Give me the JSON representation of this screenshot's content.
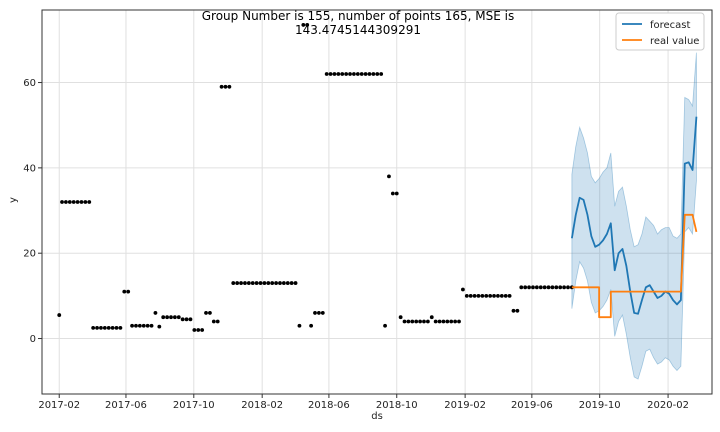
{
  "chart_data": {
    "type": "line",
    "title_line1": "Group Number is 155, number of points 165, MSE is",
    "title_line2": "143.4745144309291",
    "xlabel": "ds",
    "ylabel": "y",
    "xlim": [
      "2017-01-01",
      "2020-04-20"
    ],
    "ylim": [
      -13,
      77
    ],
    "grid": true,
    "legend_position": "top-right",
    "x_ticks": [
      {
        "date": "2017-02-01",
        "label": "2017-02"
      },
      {
        "date": "2017-06-01",
        "label": "2017-06"
      },
      {
        "date": "2017-10-01",
        "label": "2017-10"
      },
      {
        "date": "2018-02-01",
        "label": "2018-02"
      },
      {
        "date": "2018-06-01",
        "label": "2018-06"
      },
      {
        "date": "2018-10-01",
        "label": "2018-10"
      },
      {
        "date": "2019-02-01",
        "label": "2019-02"
      },
      {
        "date": "2019-06-01",
        "label": "2019-06"
      },
      {
        "date": "2019-10-01",
        "label": "2019-10"
      },
      {
        "date": "2020-02-01",
        "label": "2020-02"
      }
    ],
    "y_ticks": [
      0,
      20,
      40,
      60
    ],
    "colors": {
      "history": "#000000",
      "forecast": "#1f77b4",
      "real": "#ff7f0e",
      "band": "#1f77b4"
    },
    "series": [
      {
        "name": "",
        "kind": "scatter",
        "points": [
          [
            "2017-02-01",
            5.5
          ],
          [
            "2017-02-06",
            32
          ],
          [
            "2017-02-13",
            32
          ],
          [
            "2017-02-20",
            32
          ],
          [
            "2017-02-27",
            32
          ],
          [
            "2017-03-06",
            32
          ],
          [
            "2017-03-13",
            32
          ],
          [
            "2017-03-20",
            32
          ],
          [
            "2017-03-27",
            32
          ],
          [
            "2017-04-03",
            2.5
          ],
          [
            "2017-04-10",
            2.5
          ],
          [
            "2017-04-17",
            2.5
          ],
          [
            "2017-04-24",
            2.5
          ],
          [
            "2017-05-01",
            2.5
          ],
          [
            "2017-05-08",
            2.5
          ],
          [
            "2017-05-15",
            2.5
          ],
          [
            "2017-05-22",
            2.5
          ],
          [
            "2017-05-29",
            11
          ],
          [
            "2017-06-05",
            11
          ],
          [
            "2017-06-12",
            3
          ],
          [
            "2017-06-19",
            3
          ],
          [
            "2017-06-26",
            3
          ],
          [
            "2017-07-03",
            3
          ],
          [
            "2017-07-10",
            3
          ],
          [
            "2017-07-17",
            3
          ],
          [
            "2017-07-24",
            6
          ],
          [
            "2017-07-31",
            2.8
          ],
          [
            "2017-08-07",
            5
          ],
          [
            "2017-08-14",
            5
          ],
          [
            "2017-08-21",
            5
          ],
          [
            "2017-08-28",
            5
          ],
          [
            "2017-09-04",
            5
          ],
          [
            "2017-09-11",
            4.5
          ],
          [
            "2017-09-18",
            4.5
          ],
          [
            "2017-09-25",
            4.5
          ],
          [
            "2017-10-02",
            2
          ],
          [
            "2017-10-09",
            2
          ],
          [
            "2017-10-16",
            2
          ],
          [
            "2017-10-23",
            6
          ],
          [
            "2017-10-30",
            6
          ],
          [
            "2017-11-06",
            4
          ],
          [
            "2017-11-13",
            4
          ],
          [
            "2017-11-20",
            59
          ],
          [
            "2017-11-27",
            59
          ],
          [
            "2017-12-04",
            59
          ],
          [
            "2017-12-11",
            13
          ],
          [
            "2017-12-18",
            13
          ],
          [
            "2017-12-25",
            13
          ],
          [
            "2018-01-01",
            13
          ],
          [
            "2018-01-08",
            13
          ],
          [
            "2018-01-15",
            13
          ],
          [
            "2018-01-22",
            13
          ],
          [
            "2018-01-29",
            13
          ],
          [
            "2018-02-05",
            13
          ],
          [
            "2018-02-12",
            13
          ],
          [
            "2018-02-19",
            13
          ],
          [
            "2018-02-26",
            13
          ],
          [
            "2018-03-05",
            13
          ],
          [
            "2018-03-12",
            13
          ],
          [
            "2018-03-19",
            13
          ],
          [
            "2018-03-26",
            13
          ],
          [
            "2018-04-02",
            13
          ],
          [
            "2018-04-09",
            3
          ],
          [
            "2018-04-16",
            73.5
          ],
          [
            "2018-04-23",
            73.5
          ],
          [
            "2018-04-30",
            3
          ],
          [
            "2018-05-07",
            6
          ],
          [
            "2018-05-14",
            6
          ],
          [
            "2018-05-21",
            6
          ],
          [
            "2018-05-28",
            62
          ],
          [
            "2018-06-04",
            62
          ],
          [
            "2018-06-11",
            62
          ],
          [
            "2018-06-18",
            62
          ],
          [
            "2018-06-25",
            62
          ],
          [
            "2018-07-02",
            62
          ],
          [
            "2018-07-09",
            62
          ],
          [
            "2018-07-16",
            62
          ],
          [
            "2018-07-23",
            62
          ],
          [
            "2018-07-30",
            62
          ],
          [
            "2018-08-06",
            62
          ],
          [
            "2018-08-13",
            62
          ],
          [
            "2018-08-20",
            62
          ],
          [
            "2018-08-27",
            62
          ],
          [
            "2018-09-03",
            62
          ],
          [
            "2018-09-10",
            3
          ],
          [
            "2018-09-17",
            38
          ],
          [
            "2018-09-24",
            34
          ],
          [
            "2018-10-01",
            34
          ],
          [
            "2018-10-08",
            5
          ],
          [
            "2018-10-15",
            4
          ],
          [
            "2018-10-22",
            4
          ],
          [
            "2018-10-29",
            4
          ],
          [
            "2018-11-05",
            4
          ],
          [
            "2018-11-12",
            4
          ],
          [
            "2018-11-19",
            4
          ],
          [
            "2018-11-26",
            4
          ],
          [
            "2018-12-03",
            5
          ],
          [
            "2018-12-10",
            4
          ],
          [
            "2018-12-17",
            4
          ],
          [
            "2018-12-24",
            4
          ],
          [
            "2018-12-31",
            4
          ],
          [
            "2019-01-07",
            4
          ],
          [
            "2019-01-14",
            4
          ],
          [
            "2019-01-21",
            4
          ],
          [
            "2019-01-28",
            11.5
          ],
          [
            "2019-02-04",
            10
          ],
          [
            "2019-02-11",
            10
          ],
          [
            "2019-02-18",
            10
          ],
          [
            "2019-02-25",
            10
          ],
          [
            "2019-03-04",
            10
          ],
          [
            "2019-03-11",
            10
          ],
          [
            "2019-03-18",
            10
          ],
          [
            "2019-03-25",
            10
          ],
          [
            "2019-04-01",
            10
          ],
          [
            "2019-04-08",
            10
          ],
          [
            "2019-04-15",
            10
          ],
          [
            "2019-04-22",
            10
          ],
          [
            "2019-04-29",
            6.5
          ],
          [
            "2019-05-06",
            6.5
          ],
          [
            "2019-05-13",
            12
          ],
          [
            "2019-05-20",
            12
          ],
          [
            "2019-05-27",
            12
          ],
          [
            "2019-06-03",
            12
          ],
          [
            "2019-06-10",
            12
          ],
          [
            "2019-06-17",
            12
          ],
          [
            "2019-06-24",
            12
          ],
          [
            "2019-07-01",
            12
          ],
          [
            "2019-07-08",
            12
          ],
          [
            "2019-07-15",
            12
          ],
          [
            "2019-07-22",
            12
          ],
          [
            "2019-07-29",
            12
          ],
          [
            "2019-08-05",
            12
          ],
          [
            "2019-08-12",
            12
          ]
        ]
      },
      {
        "name": "forecast",
        "kind": "line",
        "points": [
          [
            "2019-08-12",
            23.5
          ],
          [
            "2019-08-19",
            29
          ],
          [
            "2019-08-26",
            33
          ],
          [
            "2019-09-02",
            32.5
          ],
          [
            "2019-09-09",
            29
          ],
          [
            "2019-09-16",
            24
          ],
          [
            "2019-09-23",
            21.5
          ],
          [
            "2019-09-30",
            22
          ],
          [
            "2019-10-07",
            23
          ],
          [
            "2019-10-14",
            24.5
          ],
          [
            "2019-10-21",
            27
          ],
          [
            "2019-10-28",
            16
          ],
          [
            "2019-11-04",
            20
          ],
          [
            "2019-11-11",
            21
          ],
          [
            "2019-11-18",
            17
          ],
          [
            "2019-11-25",
            11
          ],
          [
            "2019-12-02",
            6
          ],
          [
            "2019-12-09",
            5.8
          ],
          [
            "2019-12-16",
            9
          ],
          [
            "2019-12-23",
            12
          ],
          [
            "2019-12-30",
            12.5
          ],
          [
            "2020-01-06",
            11
          ],
          [
            "2020-01-13",
            9.5
          ],
          [
            "2020-01-20",
            10
          ],
          [
            "2020-01-27",
            11
          ],
          [
            "2020-02-03",
            10.5
          ],
          [
            "2020-02-10",
            9
          ],
          [
            "2020-02-17",
            8
          ],
          [
            "2020-02-24",
            9
          ],
          [
            "2020-03-02",
            41
          ],
          [
            "2020-03-09",
            41.3
          ],
          [
            "2020-03-16",
            39.5
          ],
          [
            "2020-03-23",
            52
          ]
        ]
      },
      {
        "name": "real value",
        "kind": "line",
        "points": [
          [
            "2019-08-12",
            12
          ],
          [
            "2019-09-02",
            12
          ],
          [
            "2019-09-30",
            12
          ],
          [
            "2019-09-30",
            5
          ],
          [
            "2019-10-21",
            5
          ],
          [
            "2019-10-21",
            11
          ],
          [
            "2020-02-24",
            11
          ],
          [
            "2020-03-02",
            29
          ],
          [
            "2020-03-16",
            29
          ],
          [
            "2020-03-23",
            25
          ]
        ]
      }
    ],
    "band": {
      "upper": [
        [
          "2019-08-12",
          38.5
        ],
        [
          "2019-08-19",
          45
        ],
        [
          "2019-08-26",
          49.5
        ],
        [
          "2019-09-02",
          47
        ],
        [
          "2019-09-09",
          43.5
        ],
        [
          "2019-09-16",
          38
        ],
        [
          "2019-09-23",
          36.5
        ],
        [
          "2019-09-30",
          37.5
        ],
        [
          "2019-10-07",
          39
        ],
        [
          "2019-10-14",
          40
        ],
        [
          "2019-10-21",
          43.5
        ],
        [
          "2019-10-28",
          31
        ],
        [
          "2019-11-04",
          34.5
        ],
        [
          "2019-11-11",
          35.5
        ],
        [
          "2019-11-18",
          31
        ],
        [
          "2019-11-25",
          25.5
        ],
        [
          "2019-12-02",
          21.5
        ],
        [
          "2019-12-09",
          22
        ],
        [
          "2019-12-16",
          24.5
        ],
        [
          "2019-12-23",
          28.5
        ],
        [
          "2019-12-30",
          27.5
        ],
        [
          "2020-01-06",
          26.5
        ],
        [
          "2020-01-13",
          24.5
        ],
        [
          "2020-01-20",
          25.5
        ],
        [
          "2020-01-27",
          26
        ],
        [
          "2020-02-03",
          26
        ],
        [
          "2020-02-10",
          24
        ],
        [
          "2020-02-17",
          23.5
        ],
        [
          "2020-02-24",
          24.5
        ],
        [
          "2020-03-02",
          56.5
        ],
        [
          "2020-03-09",
          56
        ],
        [
          "2020-03-16",
          54.5
        ],
        [
          "2020-03-23",
          67
        ]
      ],
      "lower": [
        [
          "2019-08-12",
          7
        ],
        [
          "2019-08-19",
          13.5
        ],
        [
          "2019-08-26",
          18
        ],
        [
          "2019-09-02",
          16.5
        ],
        [
          "2019-09-09",
          13.5
        ],
        [
          "2019-09-16",
          8.5
        ],
        [
          "2019-09-23",
          6
        ],
        [
          "2019-09-30",
          6.5
        ],
        [
          "2019-10-07",
          7.5
        ],
        [
          "2019-10-14",
          9
        ],
        [
          "2019-10-21",
          11.5
        ],
        [
          "2019-10-28",
          0.5
        ],
        [
          "2019-11-04",
          4
        ],
        [
          "2019-11-11",
          5.5
        ],
        [
          "2019-11-18",
          1
        ],
        [
          "2019-11-25",
          -4.5
        ],
        [
          "2019-12-02",
          -9
        ],
        [
          "2019-12-09",
          -9.5
        ],
        [
          "2019-12-16",
          -6.5
        ],
        [
          "2019-12-23",
          -3
        ],
        [
          "2019-12-30",
          -2.5
        ],
        [
          "2020-01-06",
          -4.5
        ],
        [
          "2020-01-13",
          -6
        ],
        [
          "2020-01-20",
          -5.5
        ],
        [
          "2020-01-27",
          -4.5
        ],
        [
          "2020-02-03",
          -5
        ],
        [
          "2020-02-10",
          -6.5
        ],
        [
          "2020-02-17",
          -7.5
        ],
        [
          "2020-02-24",
          -6.5
        ],
        [
          "2020-03-02",
          25
        ],
        [
          "2020-03-09",
          26
        ],
        [
          "2020-03-16",
          24.5
        ],
        [
          "2020-03-23",
          37
        ]
      ]
    }
  }
}
